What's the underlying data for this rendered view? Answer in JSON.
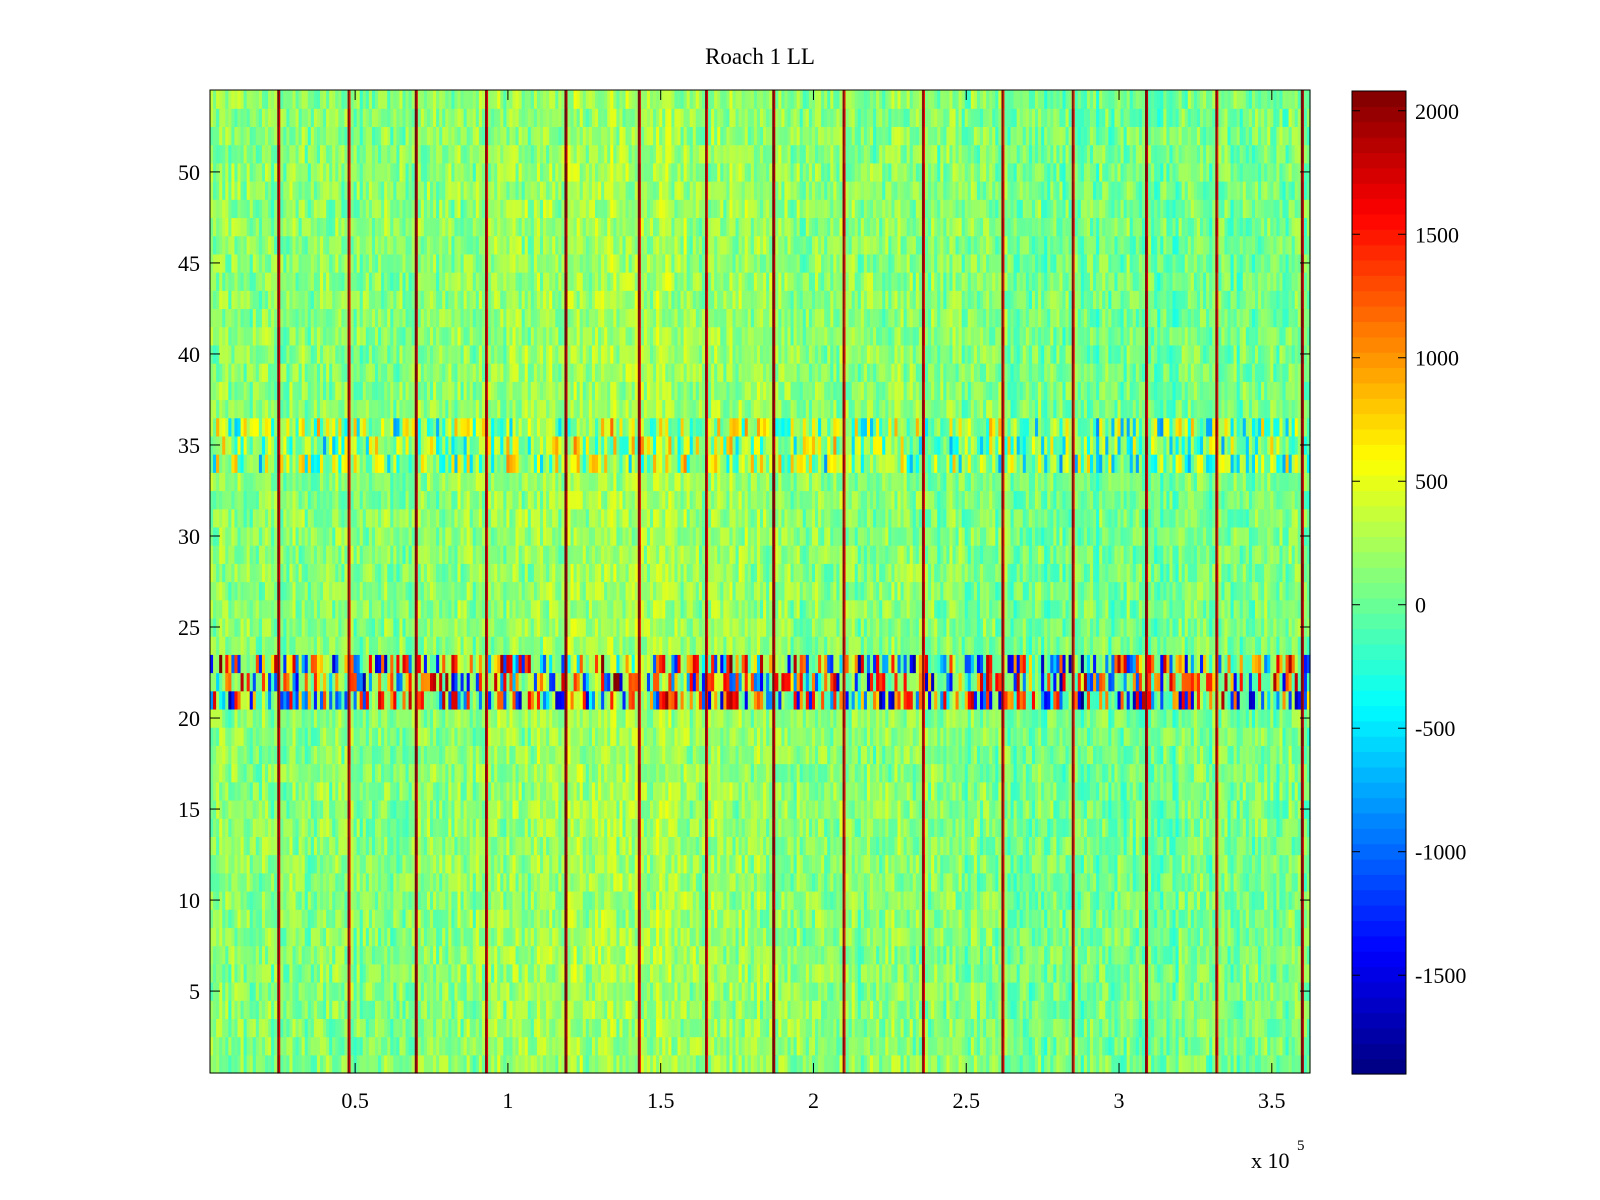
{
  "chart_data": {
    "type": "heatmap",
    "title": "Roach 1 LL",
    "xlabel": "",
    "ylabel": "",
    "x_exponent_label": "x 10",
    "x_exponent_power": "5",
    "xlim": [
      2500,
      362500
    ],
    "ylim": [
      0.5,
      54.5
    ],
    "x_ticks": [
      {
        "value": 50000,
        "label": "0.5"
      },
      {
        "value": 100000,
        "label": "1"
      },
      {
        "value": 150000,
        "label": "1.5"
      },
      {
        "value": 200000,
        "label": "2"
      },
      {
        "value": 250000,
        "label": "2.5"
      },
      {
        "value": 300000,
        "label": "3"
      },
      {
        "value": 350000,
        "label": "3.5"
      }
    ],
    "y_ticks": [
      {
        "value": 5,
        "label": "5"
      },
      {
        "value": 10,
        "label": "10"
      },
      {
        "value": 15,
        "label": "15"
      },
      {
        "value": 20,
        "label": "20"
      },
      {
        "value": 25,
        "label": "25"
      },
      {
        "value": 30,
        "label": "30"
      },
      {
        "value": 35,
        "label": "35"
      },
      {
        "value": 40,
        "label": "40"
      },
      {
        "value": 45,
        "label": "45"
      },
      {
        "value": 50,
        "label": "50"
      }
    ],
    "colormap": "jet",
    "clim": [
      -1900,
      2080
    ],
    "colorbar_ticks": [
      {
        "value": 2000,
        "label": "2000"
      },
      {
        "value": 1500,
        "label": "1500"
      },
      {
        "value": 1000,
        "label": "1000"
      },
      {
        "value": 500,
        "label": "500"
      },
      {
        "value": 0,
        "label": "0"
      },
      {
        "value": -500,
        "label": "-500"
      },
      {
        "value": -1000,
        "label": "-1000"
      },
      {
        "value": -1500,
        "label": "-1500"
      }
    ],
    "rows": 54,
    "columns": 360,
    "baseline_value": 120,
    "noise_amplitude": 260,
    "vertical_streaks": [
      {
        "x": 25000,
        "value": 1800
      },
      {
        "x": 48000,
        "value": 1600
      },
      {
        "x": 70000,
        "value": 1900
      },
      {
        "x": 93000,
        "value": 1700
      },
      {
        "x": 119000,
        "value": 1950
      },
      {
        "x": 143000,
        "value": 1800
      },
      {
        "x": 165000,
        "value": 1650
      },
      {
        "x": 187000,
        "value": 1950
      },
      {
        "x": 210000,
        "value": 1600
      },
      {
        "x": 236000,
        "value": 1700
      },
      {
        "x": 262000,
        "value": 1650
      },
      {
        "x": 285000,
        "value": 1600
      },
      {
        "x": 309000,
        "value": 1850
      },
      {
        "x": 332000,
        "value": 1600
      },
      {
        "x": 360000,
        "value": 1900
      }
    ],
    "horizontal_bands": [
      {
        "row_from": 21,
        "row_to": 23,
        "amplitude": 1700
      },
      {
        "row_from": 34,
        "row_to": 36,
        "amplitude": 700
      }
    ]
  }
}
